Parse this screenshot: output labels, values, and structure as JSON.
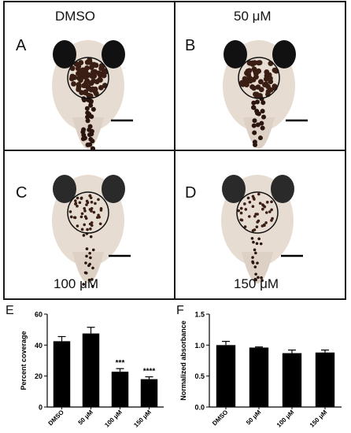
{
  "panels": [
    {
      "letter": "A",
      "label": "DMSO"
    },
    {
      "letter": "B",
      "label": "50 μM"
    },
    {
      "letter": "C",
      "label": "100 μM"
    },
    {
      "letter": "D",
      "label": "150 μM"
    }
  ],
  "chart_data": [
    {
      "panel": "E",
      "type": "bar",
      "categories": [
        "DMSO",
        "50 μM",
        "100 μM",
        "150 μM"
      ],
      "values": [
        42.5,
        47.5,
        22.8,
        18.0
      ],
      "errors": [
        3.0,
        4.0,
        2.0,
        1.5
      ],
      "annotations": [
        "",
        "",
        "***",
        "****"
      ],
      "ylabel": "Percent coverage",
      "ylim": [
        0,
        60
      ],
      "yticks": [
        "0",
        "20",
        "40",
        "60"
      ]
    },
    {
      "panel": "F",
      "type": "bar",
      "categories": [
        "DMSO",
        "50 μM",
        "100 μM",
        "150 μM"
      ],
      "values": [
        1.0,
        0.96,
        0.87,
        0.88
      ],
      "errors": [
        0.06,
        0.01,
        0.05,
        0.04
      ],
      "annotations": [
        "",
        "",
        "",
        ""
      ],
      "ylabel": "Normalized absorbance",
      "ylim": [
        0,
        1.5
      ],
      "yticks": [
        "0.0",
        "0.5",
        "1.0",
        "1.5"
      ]
    }
  ]
}
